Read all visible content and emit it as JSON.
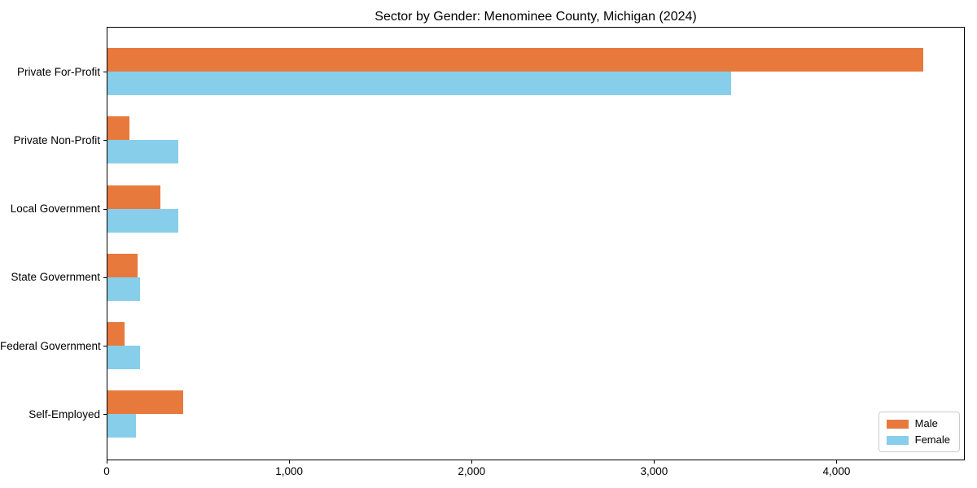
{
  "chart_data": {
    "type": "bar",
    "orientation": "horizontal",
    "title": "Sector by Gender: Menominee County, Michigan (2024)",
    "categories": [
      "Private For-Profit",
      "Private Non-Profit",
      "Local Government",
      "State Government",
      "Federal Government",
      "Self-Employed"
    ],
    "series": [
      {
        "name": "Male",
        "color": "#e8793d",
        "values": [
          4470,
          120,
          290,
          165,
          95,
          415
        ]
      },
      {
        "name": "Female",
        "color": "#87ceeb",
        "values": [
          3420,
          390,
          390,
          180,
          180,
          155
        ]
      }
    ],
    "xlabel": "",
    "ylabel": "",
    "xlim": [
      0,
      4694
    ],
    "x_ticks": [
      0,
      1000,
      2000,
      3000,
      4000
    ],
    "x_tick_labels": [
      "0",
      "1,000",
      "2,000",
      "3,000",
      "4,000"
    ],
    "grid": false,
    "legend": {
      "position": "lower right",
      "entries": [
        "Male",
        "Female"
      ]
    }
  },
  "colors": {
    "male": "#e8793d",
    "female": "#87ceeb",
    "spine": "#000000",
    "background": "#ffffff",
    "legend_border": "#cccccc"
  }
}
